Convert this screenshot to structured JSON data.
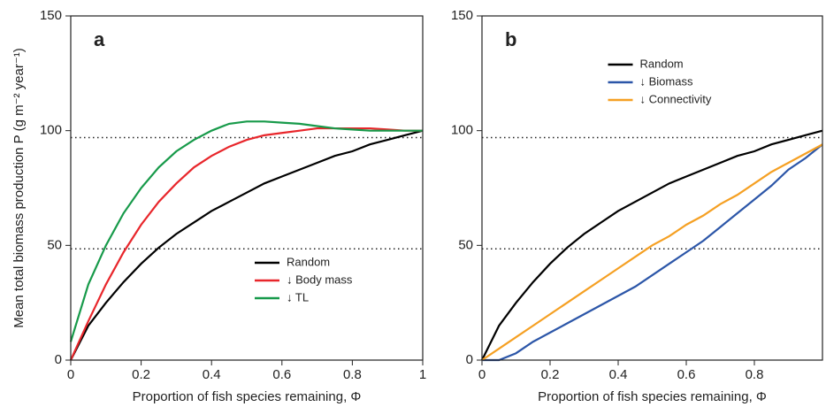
{
  "chart_data": [
    {
      "type": "line",
      "title": "a",
      "xlabel": "Proportion of fish species remaining, Φ",
      "ylabel": "Mean total biomass production P (g m⁻² year⁻¹)",
      "xlim": [
        0,
        1
      ],
      "ylim": [
        0,
        150
      ],
      "xticks": [
        0,
        0.2,
        0.4,
        0.6,
        0.8,
        1
      ],
      "yticks": [
        0,
        50,
        100,
        150
      ],
      "hlines": [
        97,
        48.5
      ],
      "legend": "lower right",
      "x": [
        0,
        0.05,
        0.1,
        0.15,
        0.2,
        0.25,
        0.3,
        0.35,
        0.4,
        0.45,
        0.5,
        0.55,
        0.6,
        0.65,
        0.7,
        0.75,
        0.8,
        0.85,
        0.9,
        0.95,
        1
      ],
      "series": [
        {
          "name": "Random",
          "color": "#000000",
          "values": [
            0,
            15,
            25,
            34,
            42,
            49,
            55,
            60,
            65,
            69,
            73,
            77,
            80,
            83,
            86,
            89,
            91,
            94,
            96,
            98,
            100
          ]
        },
        {
          "name": "↓ Body mass",
          "color": "#e8262b",
          "values": [
            0,
            17,
            33,
            47,
            59,
            69,
            77,
            84,
            89,
            93,
            96,
            98,
            99,
            100,
            101,
            101,
            101,
            101,
            100.5,
            100,
            100
          ]
        },
        {
          "name": "↓ TL",
          "color": "#179a4a",
          "values": [
            8,
            33,
            50,
            64,
            75,
            84,
            91,
            96,
            100,
            103,
            104,
            104,
            103.5,
            103,
            102,
            101,
            100.5,
            100,
            100,
            100,
            100
          ]
        }
      ]
    },
    {
      "type": "line",
      "title": "b",
      "xlabel": "Proportion of fish species remaining, Φ",
      "xlim": [
        0,
        1
      ],
      "ylim": [
        0,
        150
      ],
      "xticks": [
        0,
        0.2,
        0.4,
        0.6,
        0.8
      ],
      "yticks": [
        0,
        50,
        100,
        150
      ],
      "hlines": [
        97,
        48.5
      ],
      "legend": "upper center",
      "x": [
        0,
        0.05,
        0.1,
        0.15,
        0.2,
        0.25,
        0.3,
        0.35,
        0.4,
        0.45,
        0.5,
        0.55,
        0.6,
        0.65,
        0.7,
        0.75,
        0.8,
        0.85,
        0.9,
        0.95,
        1
      ],
      "series": [
        {
          "name": "Random",
          "color": "#000000",
          "values": [
            0,
            15,
            25,
            34,
            42,
            49,
            55,
            60,
            65,
            69,
            73,
            77,
            80,
            83,
            86,
            89,
            91,
            94,
            96,
            98,
            100
          ]
        },
        {
          "name": "↓ Biomass",
          "color": "#2c56a8",
          "values": [
            0,
            0,
            3,
            8,
            12,
            16,
            20,
            24,
            28,
            32,
            37,
            42,
            47,
            52,
            58,
            64,
            70,
            76,
            83,
            88,
            94
          ]
        },
        {
          "name": "↓ Connectivity",
          "color": "#f5a023",
          "values": [
            0,
            5,
            10,
            15,
            20,
            25,
            30,
            35,
            40,
            45,
            50,
            54,
            59,
            63,
            68,
            72,
            77,
            82,
            86,
            90,
            94
          ]
        }
      ]
    }
  ]
}
